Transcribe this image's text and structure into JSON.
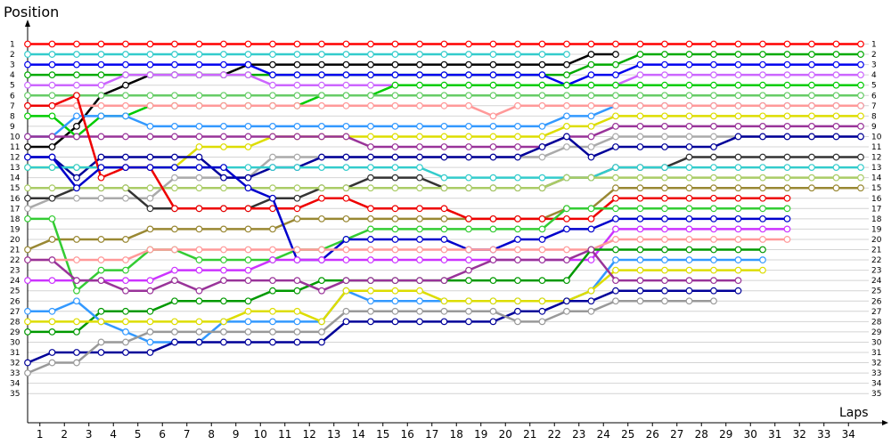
{
  "chart_data": {
    "type": "line",
    "ylabel": "Position",
    "xlabel": "Laps",
    "x_ticks": [
      1,
      2,
      3,
      4,
      5,
      6,
      7,
      8,
      9,
      10,
      11,
      12,
      13,
      14,
      15,
      16,
      17,
      18,
      19,
      20,
      21,
      22,
      23,
      24,
      25,
      26,
      27,
      28,
      29,
      30,
      31,
      32,
      33,
      34
    ],
    "y_ticks": [
      1,
      2,
      3,
      4,
      5,
      6,
      7,
      8,
      9,
      10,
      11,
      12,
      13,
      14,
      15,
      16,
      17,
      18,
      19,
      20,
      21,
      22,
      23,
      24,
      25,
      26,
      27,
      28,
      29,
      30,
      31,
      32,
      33,
      34,
      35
    ],
    "ylim": [
      1,
      35
    ],
    "y_inverted": true,
    "grid": true,
    "marker": "circle",
    "series": [
      {
        "color": "#ff0000",
        "values": [
          1,
          1,
          1,
          1,
          1,
          1,
          1,
          1,
          1,
          1,
          1,
          1,
          1,
          1,
          1,
          1,
          1,
          1,
          1,
          1,
          1,
          1,
          1,
          1,
          1,
          1,
          1,
          1,
          1,
          1,
          1,
          1,
          1,
          1,
          1
        ]
      },
      {
        "color": "#33cccc",
        "values": [
          2,
          2,
          2,
          2,
          2,
          2,
          2,
          2,
          2,
          2,
          2,
          2,
          2,
          2,
          2,
          2,
          2,
          2,
          2,
          2,
          2,
          2,
          2
        ]
      },
      {
        "color": "#000000",
        "values": [
          11,
          11,
          9,
          6,
          5,
          4,
          4,
          4,
          4,
          3,
          3,
          3,
          3,
          3,
          3,
          3,
          3,
          3,
          3,
          3,
          3,
          3,
          3,
          2,
          2
        ]
      },
      {
        "color": "#00aa00",
        "values": [
          4,
          4,
          4,
          4,
          4,
          4,
          4,
          4,
          4,
          4,
          4,
          4,
          4,
          4,
          4,
          4,
          4,
          4,
          4,
          4,
          4,
          4,
          4,
          3,
          3,
          2,
          2,
          2,
          2,
          2,
          2,
          2,
          2,
          2,
          2
        ]
      },
      {
        "color": "#0000ee",
        "values": [
          3,
          3,
          3,
          3,
          3,
          3,
          3,
          3,
          3,
          3,
          4,
          4,
          4,
          4,
          4,
          4,
          4,
          4,
          4,
          4,
          4,
          4,
          5,
          4,
          4,
          3,
          3,
          3,
          3,
          3,
          3,
          3,
          3,
          3,
          3
        ]
      },
      {
        "color": "#cc66ff",
        "values": [
          5,
          5,
          5,
          5,
          4,
          4,
          4,
          4,
          4,
          4,
          5,
          5,
          5,
          5,
          5,
          5,
          5,
          5,
          5,
          5,
          5,
          5,
          5,
          5,
          5,
          4,
          4,
          4,
          4,
          4,
          4,
          4,
          4,
          4,
          4
        ]
      },
      {
        "color": "#00cc00",
        "values": [
          8,
          8,
          10,
          8,
          8,
          7,
          7,
          7,
          7,
          7,
          7,
          7,
          6,
          6,
          6,
          5,
          5,
          5,
          5,
          5,
          5,
          5,
          5,
          5,
          5,
          5,
          5,
          5,
          5,
          5,
          5,
          5,
          5,
          5,
          5
        ]
      },
      {
        "color": "#66cc66",
        "values": [
          6,
          6,
          6,
          6,
          6,
          6,
          6,
          6,
          6,
          6,
          6,
          6,
          6,
          6,
          6,
          6,
          6,
          6,
          6,
          6,
          6,
          6,
          6,
          6,
          6,
          6,
          6,
          6,
          6,
          6,
          6,
          6,
          6,
          6,
          6
        ]
      },
      {
        "color": "#3399ff",
        "values": [
          10,
          10,
          8,
          8,
          8,
          9,
          9,
          9,
          9,
          9,
          9,
          9,
          9,
          9,
          9,
          9,
          9,
          9,
          9,
          9,
          9,
          9,
          8,
          8,
          7,
          7,
          7,
          7,
          7,
          7,
          7,
          7,
          7,
          7,
          7
        ]
      },
      {
        "color": "#ff9999",
        "values": [
          7,
          7,
          7,
          7,
          7,
          7,
          7,
          7,
          7,
          7,
          7,
          7,
          7,
          7,
          7,
          7,
          7,
          7,
          7,
          8,
          7,
          7,
          7,
          7,
          7,
          7,
          7,
          7,
          7,
          7,
          7,
          7,
          7,
          7,
          7
        ]
      },
      {
        "color": "#dddd00",
        "values": [
          13,
          13,
          13,
          13,
          13,
          13,
          13,
          11,
          11,
          11,
          10,
          10,
          10,
          10,
          10,
          10,
          10,
          10,
          10,
          10,
          10,
          10,
          9,
          9,
          8,
          8,
          8,
          8,
          8,
          8,
          8,
          8,
          8,
          8,
          8
        ]
      },
      {
        "color": "#993399",
        "values": [
          10,
          10,
          10,
          10,
          10,
          10,
          10,
          10,
          10,
          10,
          10,
          10,
          10,
          10,
          11,
          11,
          11,
          11,
          11,
          11,
          11,
          11,
          10,
          10,
          9,
          9,
          9,
          9,
          9,
          9,
          9,
          9,
          9,
          9,
          9
        ]
      },
      {
        "color": "#aaaaaa",
        "values": [
          17,
          16,
          16,
          16,
          16,
          16,
          14,
          14,
          14,
          14,
          12,
          12,
          12,
          12,
          12,
          12,
          12,
          12,
          12,
          12,
          12,
          12,
          11,
          11,
          10,
          10,
          10,
          10,
          10,
          10,
          10,
          10,
          10,
          10,
          10
        ]
      },
      {
        "color": "#000099",
        "values": [
          12,
          12,
          14,
          12,
          12,
          12,
          12,
          12,
          14,
          14,
          13,
          13,
          12,
          12,
          12,
          12,
          12,
          12,
          12,
          12,
          12,
          11,
          10,
          12,
          11,
          11,
          11,
          11,
          11,
          10,
          10,
          10,
          10,
          10,
          10
        ]
      },
      {
        "color": "#333333",
        "values": [
          16,
          16,
          15,
          15,
          15,
          17,
          17,
          17,
          17,
          17,
          16,
          16,
          15,
          15,
          14,
          14,
          14,
          15,
          15,
          15,
          15,
          15,
          14,
          14,
          13,
          13,
          13,
          12,
          12,
          12,
          12,
          12,
          12,
          12,
          12
        ]
      },
      {
        "color": "#33cccc",
        "values": [
          13,
          13,
          13,
          13,
          13,
          13,
          13,
          13,
          13,
          13,
          13,
          13,
          13,
          13,
          13,
          13,
          13,
          14,
          14,
          14,
          14,
          14,
          14,
          14,
          13,
          13,
          13,
          13,
          13,
          13,
          13,
          13,
          13,
          13,
          13
        ]
      },
      {
        "color": "#aacc66",
        "values": [
          15,
          15,
          15,
          15,
          15,
          15,
          15,
          15,
          15,
          15,
          15,
          15,
          15,
          15,
          15,
          15,
          15,
          15,
          15,
          15,
          15,
          15,
          14,
          14,
          14,
          14,
          14,
          14,
          14,
          14,
          14,
          14,
          14,
          14,
          14
        ]
      },
      {
        "color": "#998833",
        "values": [
          21,
          20,
          20,
          20,
          20,
          19,
          19,
          19,
          19,
          19,
          19,
          18,
          18,
          18,
          18,
          18,
          18,
          18,
          18,
          18,
          18,
          18,
          17,
          17,
          15,
          15,
          15,
          15,
          15,
          15,
          15,
          15,
          15,
          15,
          15
        ]
      },
      {
        "color": "#ee0000",
        "values": [
          7,
          7,
          6,
          14,
          13,
          13,
          17,
          17,
          17,
          17,
          17,
          17,
          16,
          16,
          17,
          17,
          17,
          17,
          18,
          18,
          18,
          18,
          18,
          18,
          16,
          16,
          16,
          16,
          16,
          16,
          16,
          16
        ]
      },
      {
        "color": "#33cc33",
        "values": [
          18,
          18,
          25,
          23,
          23,
          21,
          21,
          22,
          22,
          22,
          22,
          21,
          21,
          20,
          19,
          19,
          19,
          19,
          19,
          19,
          19,
          19,
          17,
          17,
          17,
          17,
          17,
          17,
          17,
          17,
          17,
          17
        ]
      },
      {
        "color": "#0000cc",
        "values": [
          12,
          12,
          15,
          13,
          13,
          13,
          13,
          13,
          13,
          15,
          16,
          22,
          22,
          20,
          20,
          20,
          20,
          20,
          21,
          21,
          20,
          20,
          19,
          19,
          18,
          18,
          18,
          18,
          18,
          18,
          18,
          18
        ]
      },
      {
        "color": "#cc33ff",
        "values": [
          24,
          24,
          24,
          24,
          24,
          24,
          23,
          23,
          23,
          23,
          22,
          22,
          22,
          22,
          22,
          22,
          22,
          22,
          22,
          22,
          22,
          22,
          22,
          22,
          19,
          19,
          19,
          19,
          19,
          19,
          19,
          19
        ]
      },
      {
        "color": "#ff9999",
        "values": [
          22,
          22,
          22,
          22,
          22,
          21,
          21,
          21,
          21,
          21,
          21,
          21,
          21,
          21,
          21,
          21,
          21,
          21,
          21,
          21,
          21,
          21,
          21,
          21,
          20,
          20,
          20,
          20,
          20,
          20,
          20,
          20
        ]
      },
      {
        "color": "#009900",
        "values": [
          29,
          29,
          29,
          27,
          27,
          27,
          26,
          26,
          26,
          26,
          25,
          25,
          24,
          24,
          24,
          24,
          24,
          24,
          24,
          24,
          24,
          24,
          24,
          21,
          21,
          21,
          21,
          21,
          21,
          21,
          21
        ]
      },
      {
        "color": "#3399ff",
        "values": [
          27,
          27,
          26,
          28,
          29,
          30,
          30,
          30,
          28,
          28,
          28,
          28,
          28,
          25,
          26,
          26,
          26,
          26,
          26,
          26,
          26,
          26,
          26,
          25,
          22,
          22,
          22,
          22,
          22,
          22,
          22
        ]
      },
      {
        "color": "#dddd00",
        "values": [
          28,
          28,
          28,
          28,
          28,
          28,
          28,
          28,
          28,
          27,
          27,
          27,
          28,
          25,
          25,
          25,
          25,
          26,
          26,
          26,
          26,
          26,
          26,
          25,
          23,
          23,
          23,
          23,
          23,
          23,
          23
        ]
      },
      {
        "color": "#993399",
        "values": [
          22,
          22,
          24,
          24,
          25,
          25,
          24,
          25,
          24,
          24,
          24,
          24,
          25,
          24,
          24,
          24,
          24,
          24,
          23,
          22,
          22,
          22,
          22,
          21,
          24,
          24,
          24,
          24,
          24,
          24
        ]
      },
      {
        "color": "#000099",
        "values": [
          32,
          31,
          31,
          31,
          31,
          31,
          30,
          30,
          30,
          30,
          30,
          30,
          30,
          28,
          28,
          28,
          28,
          28,
          28,
          28,
          27,
          27,
          26,
          26,
          25,
          25,
          25,
          25,
          25,
          25
        ]
      },
      {
        "color": "#999999",
        "values": [
          33,
          32,
          32,
          30,
          30,
          29,
          29,
          29,
          29,
          29,
          29,
          29,
          29,
          27,
          27,
          27,
          27,
          27,
          27,
          27,
          28,
          28,
          27,
          27,
          26,
          26,
          26,
          26,
          26
        ]
      }
    ]
  }
}
